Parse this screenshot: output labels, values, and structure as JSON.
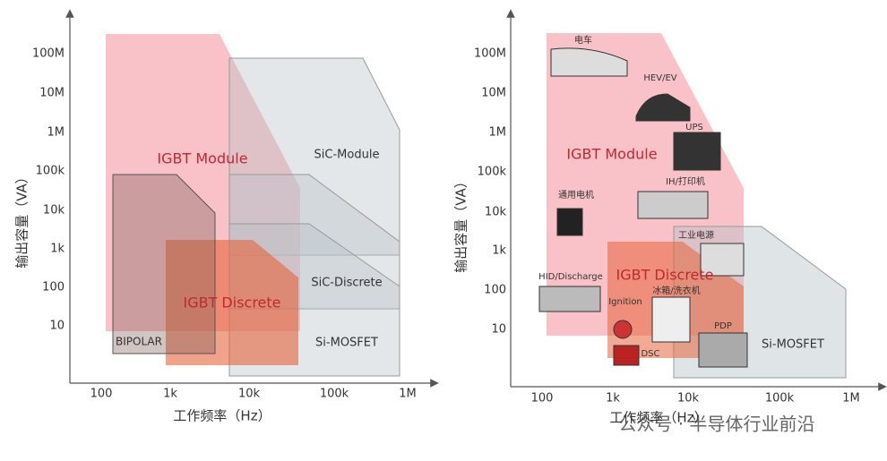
{
  "left": {
    "y_axis_label": "输出容量（VA）",
    "x_axis_label": "工作频率（Hz）",
    "yticks": [
      "100M",
      "10M",
      "1M",
      "100k",
      "10k",
      "1k",
      "100",
      "10"
    ],
    "xticks": [
      "100",
      "1k",
      "10k",
      "100k",
      "1M"
    ],
    "regions": [
      "IGBT Module",
      "SiC-Module",
      "SiC-Discrete",
      "IGBT Discrete",
      "Si-MOSFET",
      "BIPOLAR"
    ]
  },
  "right": {
    "y_axis_label": "输出容量（VA）",
    "x_axis_label": "工作频率（Hz）",
    "yticks": [
      "100M",
      "10M",
      "1M",
      "100k",
      "10k",
      "1k",
      "100",
      "10"
    ],
    "xticks": [
      "100",
      "1k",
      "10k",
      "100k",
      "1M"
    ],
    "regions": [
      "IGBT Module",
      "IGBT Discrete",
      "Si-MOSFET"
    ],
    "applications": [
      "电车",
      "HEV/EV",
      "UPS",
      "通用电机",
      "IH/打印机",
      "工业电源",
      "HID/Discharge",
      "Ignition",
      "冰箱/洗衣机",
      "PDP",
      "DSC"
    ]
  },
  "watermark": "公众号 · 半导体行业前沿"
}
